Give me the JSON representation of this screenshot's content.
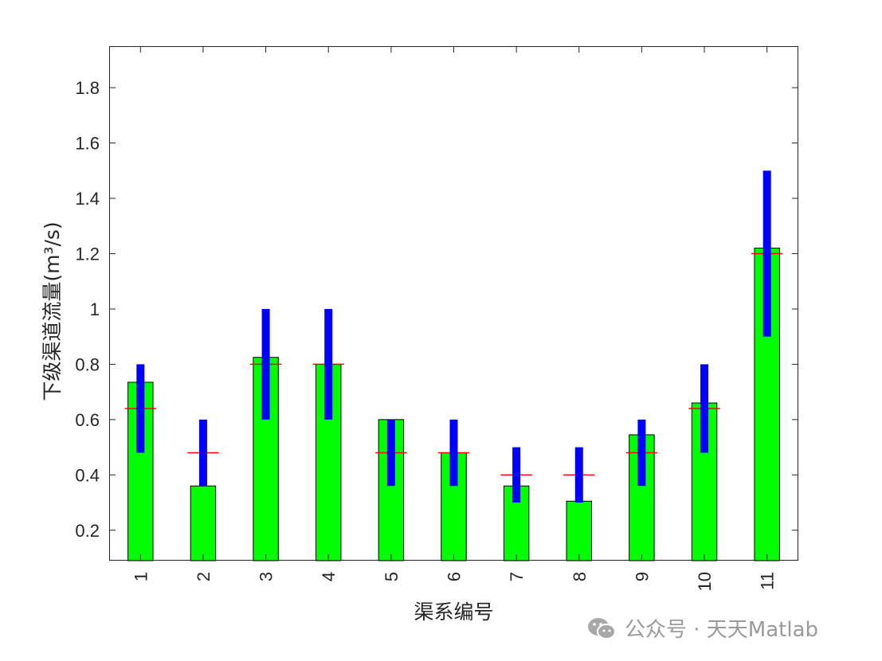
{
  "chart_data": {
    "type": "bar",
    "categories": [
      "1",
      "2",
      "3",
      "4",
      "5",
      "6",
      "7",
      "8",
      "9",
      "10",
      "11"
    ],
    "values": [
      0.735,
      0.36,
      0.825,
      0.8,
      0.6,
      0.48,
      0.36,
      0.305,
      0.545,
      0.66,
      1.22
    ],
    "reference_values": [
      0.64,
      0.48,
      0.8,
      0.8,
      0.48,
      0.48,
      0.4,
      0.4,
      0.48,
      0.64,
      1.2
    ],
    "range_min": [
      0.48,
      0.36,
      0.6,
      0.6,
      0.36,
      0.36,
      0.3,
      0.3,
      0.36,
      0.48,
      0.9
    ],
    "range_max": [
      0.8,
      0.6,
      1.0,
      1.0,
      0.6,
      0.6,
      0.5,
      0.5,
      0.6,
      0.8,
      1.5
    ],
    "ylim": [
      0.09,
      1.95
    ],
    "yticks": [
      0.2,
      0.4,
      0.6,
      0.8,
      1,
      1.2,
      1.4,
      1.6,
      1.8
    ],
    "ytick_labels": [
      "0.2",
      "0.4",
      "0.6",
      "0.8",
      "1",
      "1.2",
      "1.4",
      "1.6",
      "1.8"
    ],
    "xlabel": "渠系编号",
    "ylabel": "下级渠道流量(m³/s)",
    "x_tick_rotation": "90",
    "grid": false,
    "colors": {
      "bar": "#00ff00",
      "bar_edge": "#000000",
      "range": "#0000ff",
      "reference": "#ff0000",
      "axis": "#262626"
    }
  },
  "watermark": {
    "icon": "wechat-icon",
    "text": "公众号 · 天天Matlab"
  }
}
